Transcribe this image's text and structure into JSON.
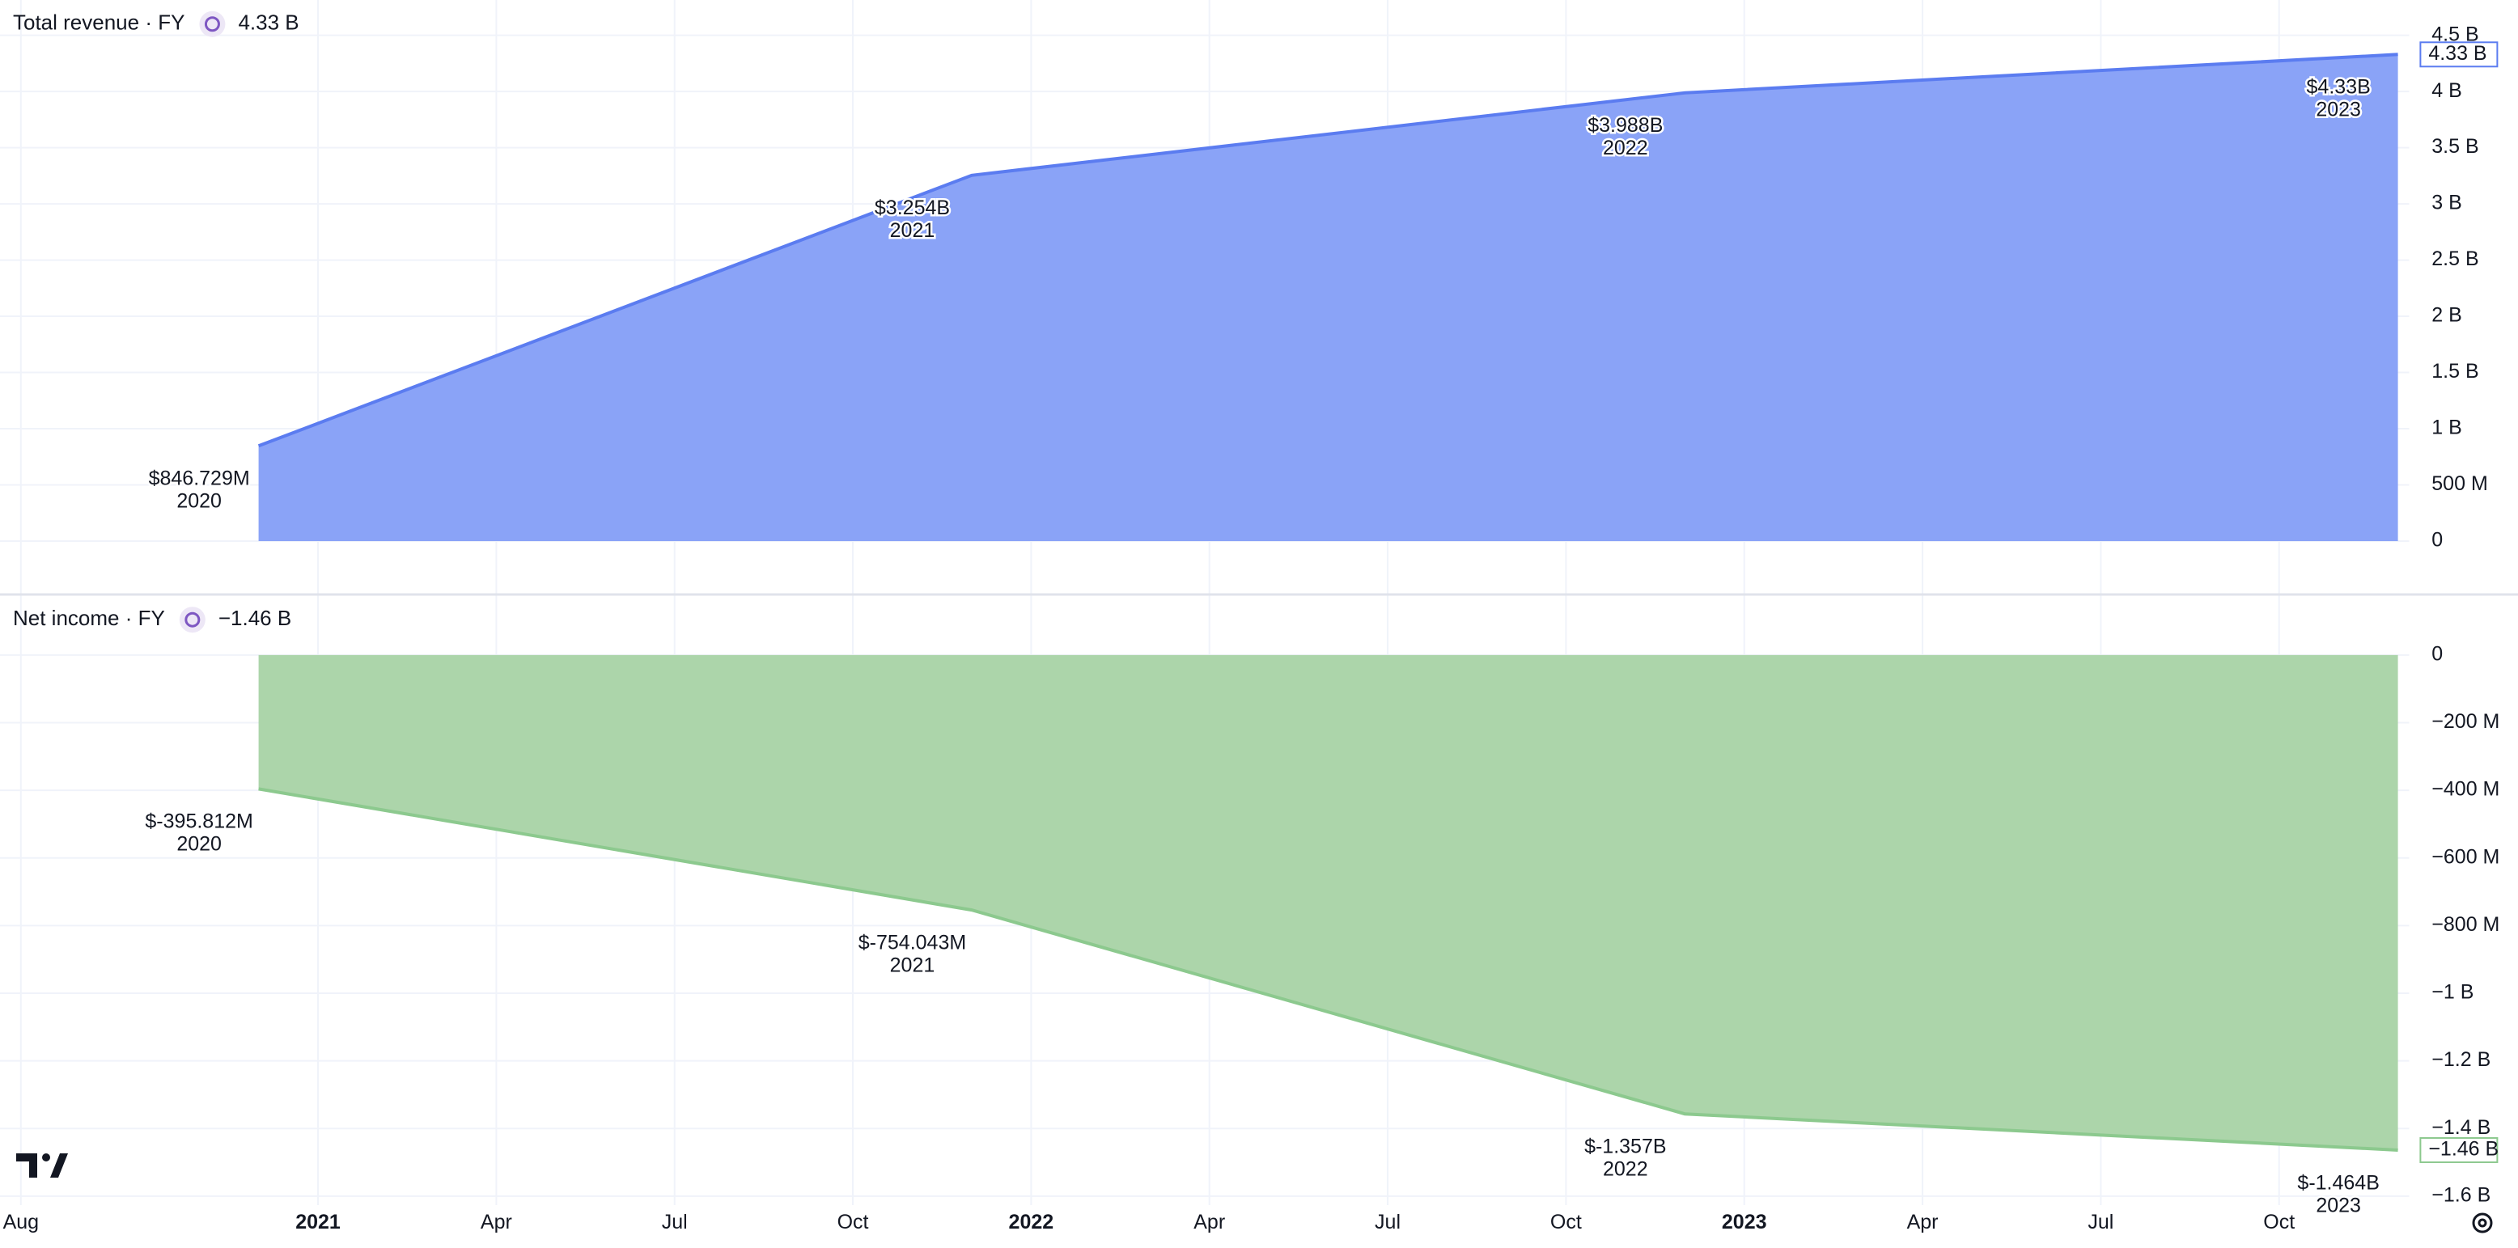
{
  "chart_data": [
    {
      "type": "area",
      "title": "Total revenue · FY",
      "last_value_label": "4.33 B",
      "color": "#5b7cf0",
      "fill": "#8aa3f7",
      "x": [
        "2020",
        "2021",
        "2022",
        "2023"
      ],
      "values": [
        846729000,
        3254000000,
        3988000000,
        4330000000
      ],
      "value_labels": [
        "$846.729M",
        "$3.254B",
        "$3.988B",
        "$4.33B"
      ],
      "ylim": [
        0,
        4500000000
      ],
      "yticks": [
        0,
        {
          "value": 500000000,
          "label": "500 M"
        },
        {
          "value": 1000000000,
          "label": "1 B"
        },
        {
          "value": 1500000000,
          "label": "1.5 B"
        },
        {
          "value": 2000000000,
          "label": "2 B"
        },
        {
          "value": 2500000000,
          "label": "2.5 B"
        },
        {
          "value": 3000000000,
          "label": "3 B"
        },
        {
          "value": 3500000000,
          "label": "3.5 B"
        },
        {
          "value": 4000000000,
          "label": "4 B"
        },
        {
          "value": 4500000000,
          "label": "4.5 B"
        }
      ],
      "grid": true
    },
    {
      "type": "area",
      "title": "Net income · FY",
      "last_value_label": "−1.46 B",
      "color": "#8cc98e",
      "fill": "#acd5aa",
      "x": [
        "2020",
        "2021",
        "2022",
        "2023"
      ],
      "values": [
        -395812000,
        -754043000,
        -1357000000,
        -1464000000
      ],
      "value_labels": [
        "$-395.812M",
        "$-754.043M",
        "$-1.357B",
        "$-1.464B"
      ],
      "ylim": [
        -1600000000,
        0
      ],
      "yticks": [
        0,
        {
          "value": -200000000,
          "label": "−200 M"
        },
        {
          "value": -400000000,
          "label": "−400 M"
        },
        {
          "value": -600000000,
          "label": "−600 M"
        },
        {
          "value": -800000000,
          "label": "−800 M"
        },
        {
          "value": -1000000000,
          "label": "−1 B"
        },
        {
          "value": -1200000000,
          "label": "−1.2 B"
        },
        {
          "value": -1400000000,
          "label": "−1.4 B"
        },
        {
          "value": -1600000000,
          "label": "−1.6 B"
        }
      ],
      "xticks": [
        "Aug",
        "2021",
        "Apr",
        "Jul",
        "Oct",
        "2022",
        "Apr",
        "Jul",
        "Oct",
        "2023",
        "Apr",
        "Jul",
        "Oct"
      ],
      "grid": true
    }
  ]
}
